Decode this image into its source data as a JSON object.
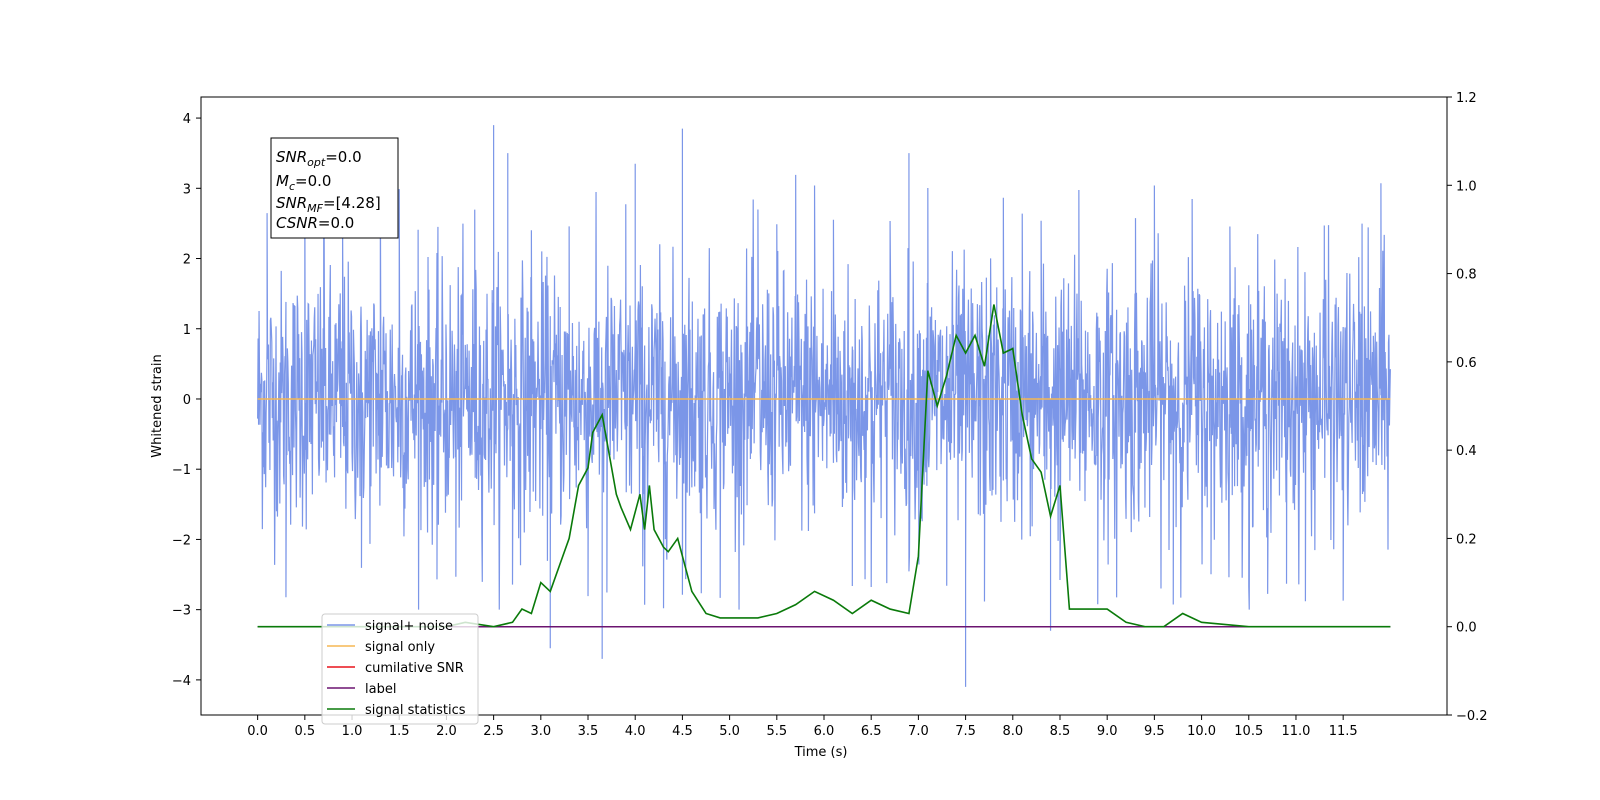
{
  "chart_data": {
    "type": "line",
    "xlabel": "Time (s)",
    "ylabel": "Whitened strain",
    "xlim": [
      -0.6,
      12.6
    ],
    "ylim": [
      -4.5,
      4.3
    ],
    "y2lim": [
      -0.2,
      1.2
    ],
    "x_ticks": [
      0.0,
      0.5,
      1.0,
      1.5,
      2.0,
      2.5,
      3.0,
      3.5,
      4.0,
      4.5,
      5.0,
      5.5,
      6.0,
      6.5,
      7.0,
      7.5,
      8.0,
      8.5,
      9.0,
      9.5,
      10.0,
      10.5,
      11.0,
      11.5
    ],
    "y_ticks": [
      4,
      3,
      2,
      1,
      0,
      -1,
      -2,
      -3,
      -4
    ],
    "y2_ticks": [
      1.2,
      1.0,
      0.8,
      0.6,
      0.4,
      0.2,
      0.0,
      -0.2
    ],
    "grid": false,
    "legend_position": "lower-left",
    "colors": {
      "signal_noise": "#7b96e8",
      "signal_only": "#f5b754",
      "cumulative_snr": "#e8141c",
      "label": "#6b1470",
      "signal_statistics": "#0a7a0a"
    },
    "annotation": {
      "snr_opt": {
        "base": "SNR",
        "sub": "opt",
        "value": "=0.0"
      },
      "mc": {
        "base": "M",
        "sub": "c",
        "value": "=0.0"
      },
      "snr_mf": {
        "base": "SNR",
        "sub": "MF",
        "value": "=[4.28]"
      },
      "csnr": {
        "base": "CSNR",
        "sub": "",
        "value": "=0.0"
      }
    },
    "series": [
      {
        "name": "signal+ noise",
        "note_range": [
          0.0,
          12.0
        ],
        "notable_peaks": [
          {
            "x": 2.5,
            "y": 3.9
          },
          {
            "x": 2.65,
            "y": 3.5
          },
          {
            "x": 4.5,
            "y": 3.85
          },
          {
            "x": 4.0,
            "y": 3.35
          },
          {
            "x": 6.9,
            "y": 3.5
          },
          {
            "x": 7.5,
            "y": -4.1
          },
          {
            "x": 3.65,
            "y": -3.7
          },
          {
            "x": 3.1,
            "y": -3.55
          },
          {
            "x": 8.4,
            "y": -3.3
          }
        ]
      },
      {
        "name": "signal only",
        "y": 0.0
      },
      {
        "name": "cumilative SNR",
        "y": 0.0
      },
      {
        "name": "label",
        "y": 0.0
      },
      {
        "name": "signal statistics",
        "axis": "right",
        "x": [
          0.0,
          2.0,
          2.2,
          2.5,
          2.7,
          2.8,
          2.9,
          3.0,
          3.1,
          3.2,
          3.3,
          3.4,
          3.5,
          3.55,
          3.65,
          3.8,
          3.85,
          3.95,
          4.05,
          4.1,
          4.15,
          4.2,
          4.3,
          4.35,
          4.45,
          4.6,
          4.75,
          4.9,
          5.1,
          5.3,
          5.5,
          5.7,
          5.9,
          6.1,
          6.3,
          6.5,
          6.7,
          6.9,
          7.0,
          7.1,
          7.2,
          7.3,
          7.4,
          7.5,
          7.6,
          7.7,
          7.8,
          7.9,
          8.0,
          8.1,
          8.2,
          8.3,
          8.4,
          8.5,
          8.6,
          8.8,
          9.0,
          9.2,
          9.4,
          9.6,
          9.8,
          10.0,
          10.5,
          12.0
        ],
        "values": [
          0.0,
          0.0,
          0.01,
          0.0,
          0.01,
          0.04,
          0.03,
          0.1,
          0.08,
          0.14,
          0.2,
          0.32,
          0.36,
          0.44,
          0.48,
          0.3,
          0.27,
          0.22,
          0.3,
          0.22,
          0.32,
          0.22,
          0.18,
          0.17,
          0.2,
          0.08,
          0.03,
          0.02,
          0.02,
          0.02,
          0.03,
          0.05,
          0.08,
          0.06,
          0.03,
          0.06,
          0.04,
          0.03,
          0.16,
          0.58,
          0.5,
          0.57,
          0.66,
          0.62,
          0.66,
          0.59,
          0.73,
          0.62,
          0.63,
          0.48,
          0.38,
          0.35,
          0.25,
          0.32,
          0.04,
          0.04,
          0.04,
          0.01,
          0.0,
          0.0,
          0.03,
          0.01,
          0.0,
          0.0
        ]
      }
    ]
  }
}
